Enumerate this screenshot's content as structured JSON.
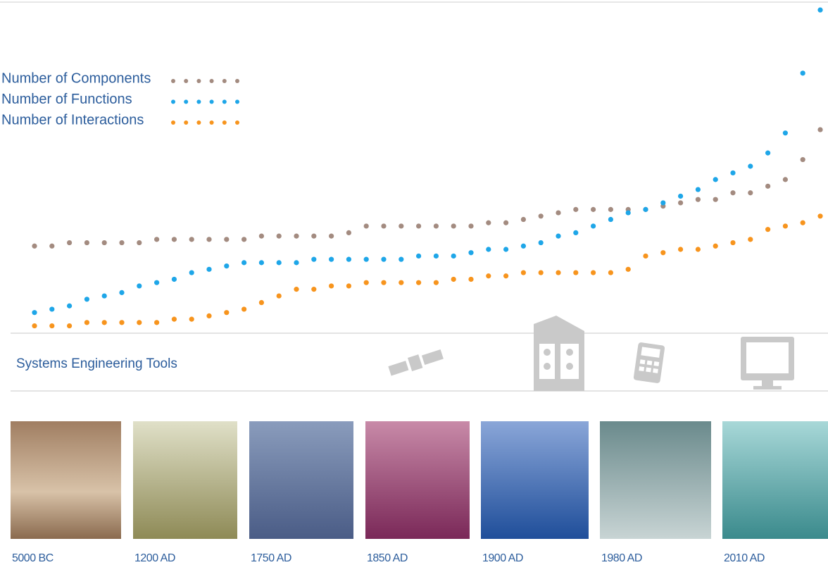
{
  "chart_data": {
    "type": "scatter",
    "x": [
      0,
      1,
      2,
      3,
      4,
      5,
      6,
      7,
      8,
      9,
      10,
      11,
      12,
      13,
      14,
      15,
      16,
      17,
      18,
      19,
      20,
      21,
      22,
      23,
      24,
      25,
      26,
      27,
      28,
      29,
      30,
      31,
      32,
      33,
      34,
      35,
      36,
      37,
      38,
      39,
      40,
      41,
      42,
      43,
      44,
      45
    ],
    "xlim": [
      0,
      45
    ],
    "ylim": [
      0,
      100
    ],
    "series": [
      {
        "name": "Number of Components",
        "color": "#a38b80",
        "values": [
          26,
          26,
          27,
          27,
          27,
          27,
          27,
          28,
          28,
          28,
          28,
          28,
          28,
          29,
          29,
          29,
          29,
          29,
          30,
          32,
          32,
          32,
          32,
          32,
          32,
          32,
          33,
          33,
          34,
          35,
          36,
          37,
          37,
          37,
          37,
          37,
          38,
          39,
          40,
          40,
          42,
          42,
          44,
          46,
          52,
          61
        ]
      },
      {
        "name": "Number of Functions",
        "color": "#1ea6e8",
        "values": [
          6,
          7,
          8,
          10,
          11,
          12,
          14,
          15,
          16,
          18,
          19,
          20,
          21,
          21,
          21,
          21,
          22,
          22,
          22,
          22,
          22,
          22,
          23,
          23,
          23,
          24,
          25,
          25,
          26,
          27,
          29,
          30,
          32,
          34,
          36,
          37,
          39,
          41,
          43,
          46,
          48,
          50,
          54,
          60,
          78,
          97
        ]
      },
      {
        "name": "Number of Interactions",
        "color": "#f7941d",
        "values": [
          2,
          2,
          2,
          3,
          3,
          3,
          3,
          3,
          4,
          4,
          5,
          6,
          7,
          9,
          11,
          13,
          13,
          14,
          14,
          15,
          15,
          15,
          15,
          15,
          16,
          16,
          17,
          17,
          18,
          18,
          18,
          18,
          18,
          18,
          19,
          23,
          24,
          25,
          25,
          26,
          27,
          28,
          31,
          32,
          33,
          35
        ]
      }
    ]
  },
  "tools_label": "Systems Engineering Tools",
  "eras": [
    "5000 BC",
    "1200 AD",
    "1750 AD",
    "1850 AD",
    "1900 AD",
    "1980 AD",
    "2010 AD"
  ]
}
